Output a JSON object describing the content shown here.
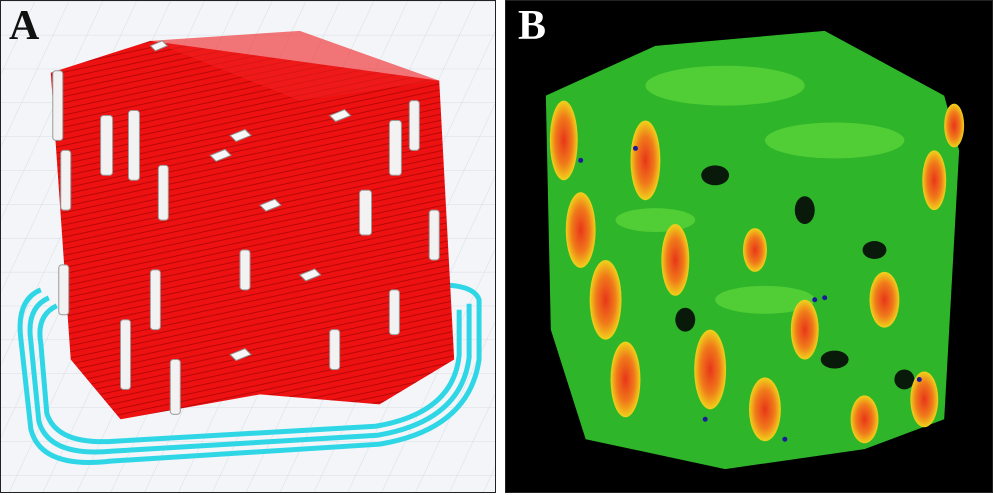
{
  "figure": {
    "panels": [
      {
        "label": "A",
        "description_icon": "scaffold-slice-preview-icon",
        "colors": {
          "background": "#f3f5f8",
          "grid": "#d6dbe3",
          "scaffold": "#ee1111",
          "support": "#f2f2f2",
          "brim": "#2fd6e6"
        }
      },
      {
        "label": "B",
        "description_icon": "scaffold-stress-map-icon",
        "colors": {
          "background": "#000000",
          "low": "#2fb52a",
          "mid": "#f0d21a",
          "high": "#e8361a",
          "point": "#1a1a9a"
        }
      }
    ]
  }
}
